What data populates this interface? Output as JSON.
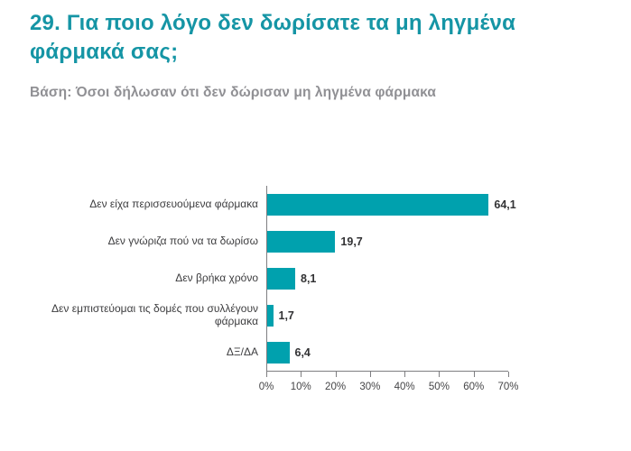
{
  "header": {
    "title": "29. Για ποιο λόγο δεν δωρίσατε τα μη ληγμένα φάρμακά σας;",
    "subtitle": "Βάση: Όσοι δήλωσαν ότι δεν δώρισαν μη ληγμένα φάρμακα"
  },
  "colors": {
    "title_teal": "#1595a5",
    "subtitle_gray": "#909094",
    "bar_teal": "#00a1ae",
    "axis_gray": "#7e7e81",
    "value_label_dark": "#323234"
  },
  "chart_data": {
    "type": "bar",
    "orientation": "horizontal",
    "title": "29. Για ποιο λόγο δεν δωρίσατε τα μη ληγμένα φάρμακά σας;",
    "subtitle": "Βάση: Όσοι δήλωσαν ότι δεν δώρισαν μη ληγμένα φάρμακα",
    "categories": [
      "Δεν είχα περισσευούμενα φάρμακα",
      "Δεν γνώριζα πού να τα δωρίσω",
      "Δεν βρήκα χρόνο",
      "Δεν εμπιστεύομαι τις δομές που συλλέγουν φάρμακα",
      "ΔΞ/ΔΑ"
    ],
    "values": [
      64.1,
      19.7,
      8.1,
      1.7,
      6.4
    ],
    "value_labels": [
      "64,1",
      "19,7",
      "8,1",
      "1,7",
      "6,4"
    ],
    "xlabel": "",
    "ylabel": "",
    "xlim": [
      0,
      70
    ],
    "x_tick_labels": [
      "0%",
      "10%",
      "20%",
      "30%",
      "40%",
      "50%",
      "60%",
      "70%"
    ],
    "grid": false,
    "legend": "none",
    "bar_color": "#00a1ae"
  }
}
